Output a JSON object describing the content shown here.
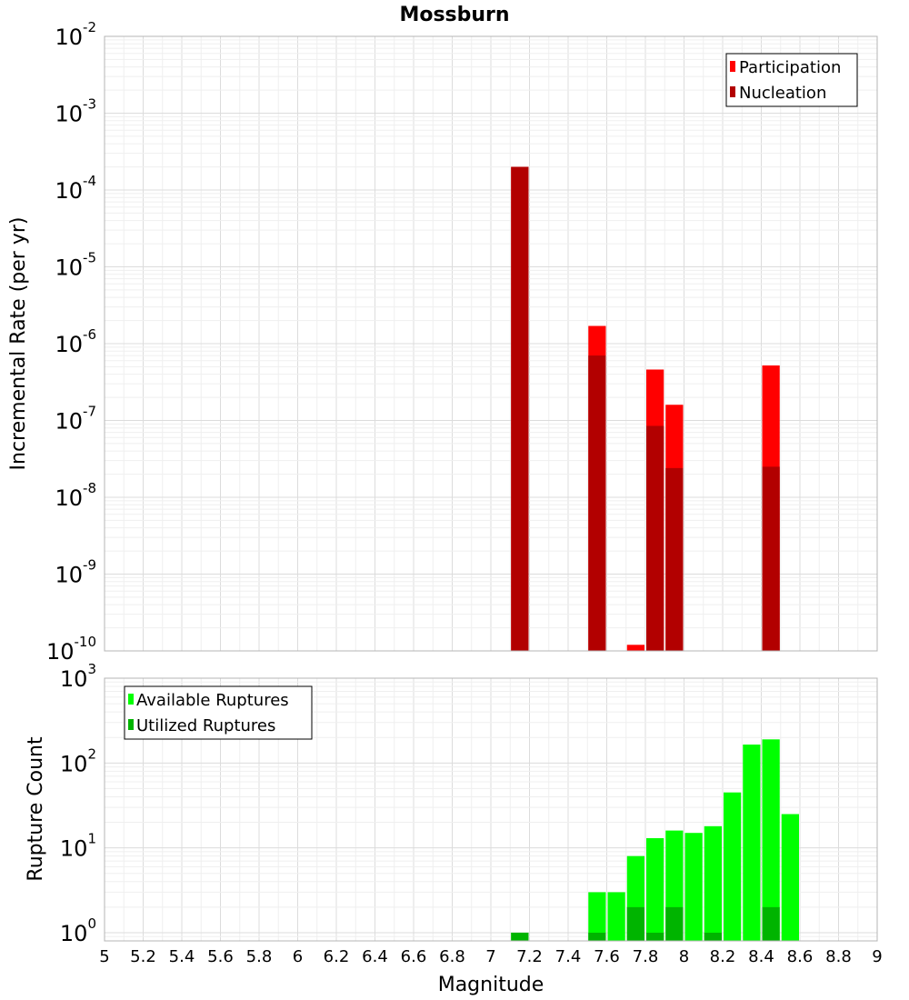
{
  "colors": {
    "participation": "#ff0000",
    "nucleation": "#b20000",
    "available": "#00ff00",
    "utilized": "#00b400"
  },
  "chart_data": [
    {
      "type": "bar",
      "title": "Mossburn",
      "xlabel": "",
      "ylabel": "Incremental Rate (per yr)",
      "yscale": "log",
      "xlim": [
        5,
        9
      ],
      "ylim": [
        1e-10,
        0.01
      ],
      "y_ticks": [
        {
          "mant": "10",
          "exp": "-10"
        },
        {
          "mant": "10",
          "exp": "-9"
        },
        {
          "mant": "10",
          "exp": "-8"
        },
        {
          "mant": "10",
          "exp": "-7"
        },
        {
          "mant": "10",
          "exp": "-6"
        },
        {
          "mant": "10",
          "exp": "-5"
        },
        {
          "mant": "10",
          "exp": "-4"
        },
        {
          "mant": "10",
          "exp": "-3"
        },
        {
          "mant": "10",
          "exp": "-2"
        }
      ],
      "legend": {
        "position": "top-right"
      },
      "grid": true,
      "series": [
        {
          "name": "Participation",
          "color": "#ff0000",
          "x": [
            7.15,
            7.55,
            7.75,
            7.85,
            7.95,
            8.45
          ],
          "values": [
            0.0002,
            1.7e-06,
            1.2e-10,
            4.6e-07,
            1.6e-07,
            5.2e-07
          ]
        },
        {
          "name": "Nucleation",
          "color": "#b20000",
          "x": [
            7.15,
            7.55,
            7.85,
            7.95,
            8.45
          ],
          "values": [
            0.0002,
            7e-07,
            8.5e-08,
            2.4e-08,
            2.5e-08
          ]
        }
      ]
    },
    {
      "type": "bar",
      "xlabel": "Magnitude",
      "ylabel": "Rupture Count",
      "yscale": "log",
      "xlim": [
        5,
        9
      ],
      "ylim": [
        0.8,
        1000
      ],
      "x_ticks": [
        "5",
        "5.2",
        "5.4",
        "5.6",
        "5.8",
        "6",
        "6.2",
        "6.4",
        "6.6",
        "6.8",
        "7",
        "7.2",
        "7.4",
        "7.6",
        "7.8",
        "8",
        "8.2",
        "8.4",
        "8.6",
        "8.8",
        "9"
      ],
      "y_ticks": [
        {
          "mant": "10",
          "exp": "0"
        },
        {
          "mant": "10",
          "exp": "1"
        },
        {
          "mant": "10",
          "exp": "2"
        },
        {
          "mant": "10",
          "exp": "3"
        }
      ],
      "legend": {
        "position": "top-left"
      },
      "grid": true,
      "series": [
        {
          "name": "Available Ruptures",
          "color": "#00ff00",
          "x": [
            7.15,
            7.55,
            7.65,
            7.75,
            7.85,
            7.95,
            8.05,
            8.15,
            8.25,
            8.35,
            8.45,
            8.55
          ],
          "values": [
            1,
            3,
            3,
            8,
            13,
            16,
            15,
            18,
            45,
            165,
            190,
            25
          ]
        },
        {
          "name": "Utilized Ruptures",
          "color": "#00b400",
          "x": [
            7.15,
            7.55,
            7.75,
            7.85,
            7.95,
            8.15,
            8.45
          ],
          "values": [
            1,
            1,
            2,
            1,
            2,
            1,
            2
          ]
        }
      ]
    }
  ]
}
